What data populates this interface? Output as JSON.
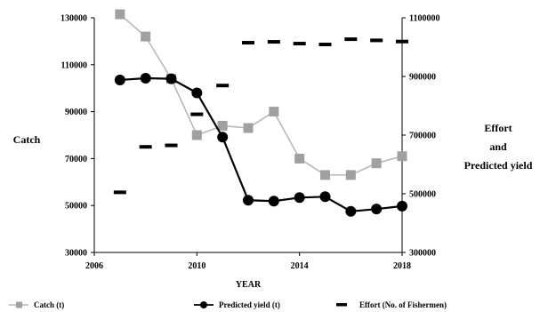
{
  "chart_data": {
    "type": "line",
    "xlabel": "YEAR",
    "ylabel": "Catch",
    "y2label": [
      "Effort",
      "and",
      "Predicted yield"
    ],
    "x": [
      2007,
      2008,
      2009,
      2010,
      2011,
      2012,
      2013,
      2014,
      2015,
      2016,
      2017,
      2018
    ],
    "xlim": [
      2006,
      2018
    ],
    "xticks": [
      2006,
      2010,
      2014,
      2018
    ],
    "ylim": [
      30000,
      130000
    ],
    "yticks": [
      30000,
      50000,
      70000,
      90000,
      110000,
      130000
    ],
    "y2lim": [
      300000,
      1100000
    ],
    "y2ticks": [
      300000,
      500000,
      700000,
      900000,
      1100000
    ],
    "grid": false,
    "legend_position": "bottom",
    "series": [
      {
        "name": "Catch (t)",
        "axis": "left",
        "marker": "square",
        "color": "#a0a0a0",
        "values": [
          131500,
          122000,
          104000,
          80000,
          84000,
          83000,
          90000,
          70000,
          63000,
          63000,
          68000,
          71000
        ]
      },
      {
        "name": "Predicted yield (t)",
        "axis": "right",
        "marker": "circle",
        "color": "#000000",
        "values": [
          888000,
          894000,
          892000,
          844000,
          693000,
          478000,
          475000,
          487000,
          490000,
          440000,
          448000,
          458000
        ]
      },
      {
        "name": "Effort (No. of Fishermen)",
        "axis": "right",
        "marker": "dash",
        "color": "#000000",
        "values": [
          505000,
          660000,
          665000,
          771000,
          869000,
          1015000,
          1018000,
          1012000,
          1009000,
          1027000,
          1023000,
          1019000
        ]
      }
    ]
  }
}
